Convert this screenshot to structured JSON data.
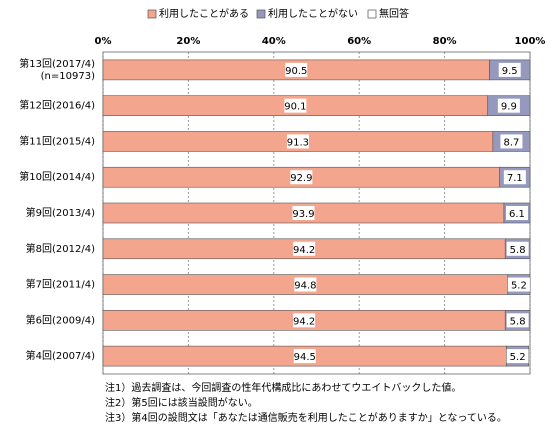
{
  "chart_data": {
    "type": "stacked-bar-horizontal",
    "categories": [
      "第13回(2017/4)\n(n=10973)",
      "第12回(2016/4)",
      "第11回(2015/4)",
      "第10回(2014/4)",
      "第9回(2013/4)",
      "第8回(2012/4)",
      "第7回(2011/4)",
      "第6回(2009/4)",
      "第4回(2007/4)"
    ],
    "series": [
      {
        "name": "利用したことがある",
        "color": "#f4a58e",
        "values": [
          90.5,
          90.1,
          91.3,
          92.9,
          93.9,
          94.2,
          94.8,
          94.2,
          94.5
        ]
      },
      {
        "name": "利用したことがない",
        "color": "#9499bd",
        "values": [
          9.5,
          9.9,
          8.7,
          7.1,
          6.1,
          5.8,
          5.2,
          5.8,
          5.2
        ]
      },
      {
        "name": "無回答",
        "color": "#ffffff",
        "values": [
          0,
          0,
          0,
          0,
          0,
          0,
          0,
          0,
          0
        ]
      }
    ],
    "xlim": [
      0,
      100
    ],
    "xticks": [
      {
        "value": 0,
        "label": "0%"
      },
      {
        "value": 20,
        "label": "20%"
      },
      {
        "value": 40,
        "label": "40%"
      },
      {
        "value": 60,
        "label": "60%"
      },
      {
        "value": 80,
        "label": "80%"
      },
      {
        "value": 100,
        "label": "100%"
      }
    ],
    "grid": true,
    "notes": [
      "注1）過去調査は、今回調査の性年代構成比にあわせてウエイトバックした値。",
      "注2）第5回には該当設問がない。",
      "注3）第4回の設問文は「あなたは通信販売を利用したことがありますか」となっている。"
    ]
  }
}
